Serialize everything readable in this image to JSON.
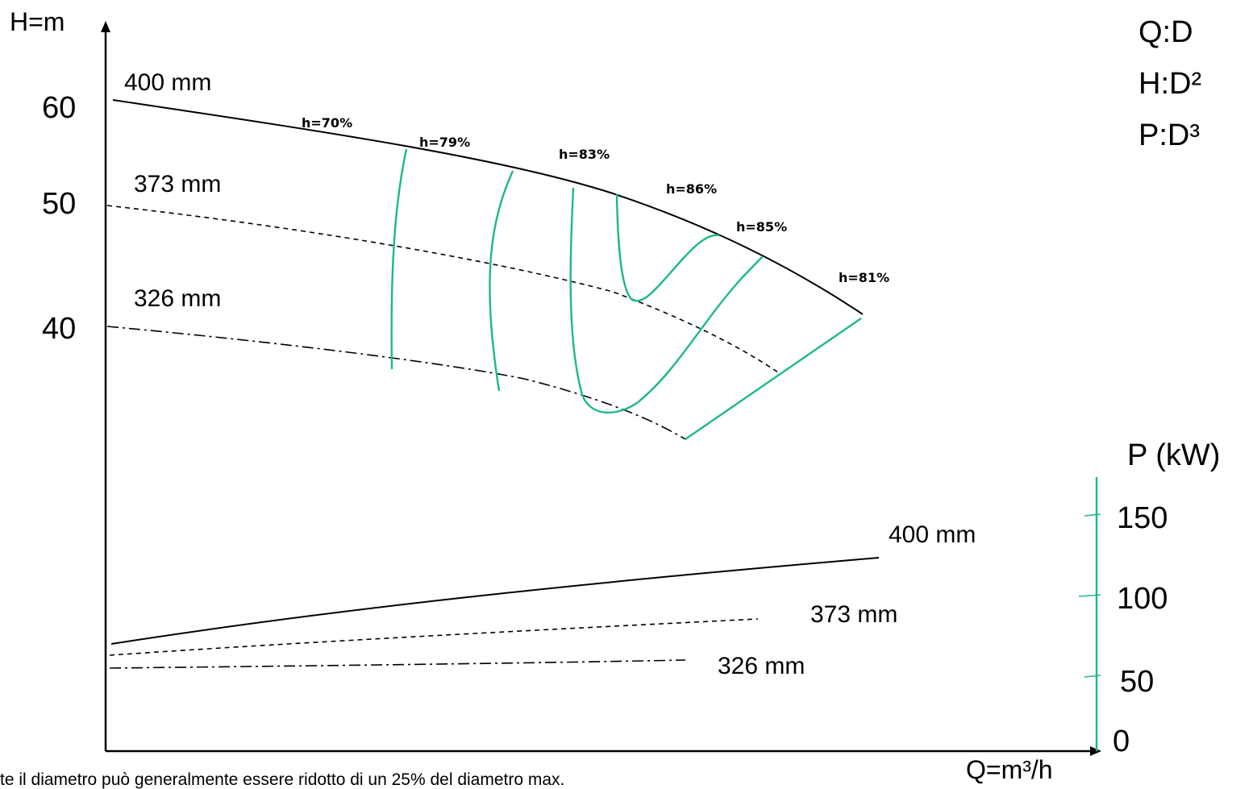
{
  "chart_data": {
    "type": "line",
    "title": "",
    "ylabel": "H=m",
    "xlabel": "Q=m³/h",
    "yticks": [
      "60",
      "50",
      "40"
    ],
    "scaling_laws": [
      "Q:D",
      "H:D²",
      "P:D³"
    ],
    "head_curves": [
      {
        "name": "400 mm",
        "style": "solid"
      },
      {
        "name": "373 mm",
        "style": "dashed"
      },
      {
        "name": "326 mm",
        "style": "dashdot"
      }
    ],
    "efficiency_labels": [
      "h=70%",
      "h=79%",
      "h=83%",
      "h=86%",
      "h=85%",
      "h=81%"
    ],
    "power_axis": {
      "label": "P (kW)",
      "ticks": [
        "150",
        "100",
        "50",
        "0"
      ],
      "color": "#1db88a"
    },
    "power_curves": [
      {
        "name": "400 mm",
        "style": "solid"
      },
      {
        "name": "373 mm",
        "style": "dashed"
      },
      {
        "name": "326 mm",
        "style": "dashdot"
      }
    ],
    "footnote": "te il diametro può generalmente essere ridotto di un 25% del diametro max."
  }
}
